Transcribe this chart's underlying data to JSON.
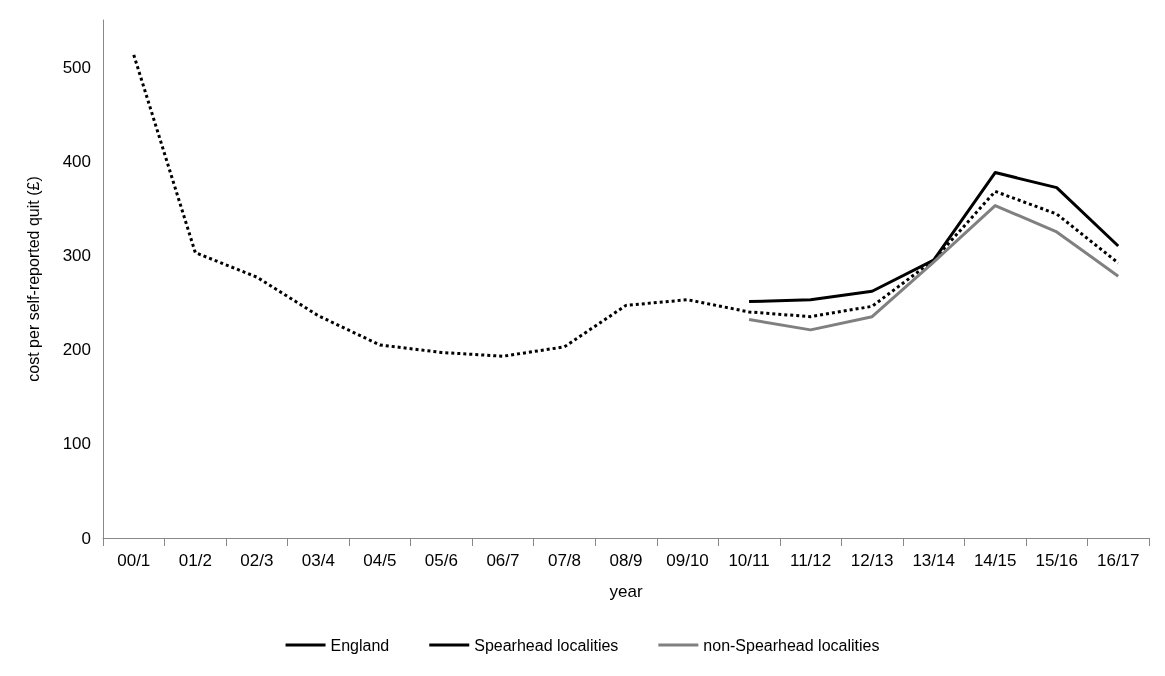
{
  "chart_data": {
    "type": "line",
    "xlabel": "year",
    "ylabel": "cost per self-reported quit (£)",
    "categories": [
      "00/1",
      "01/2",
      "02/3",
      "03/4",
      "04/5",
      "05/6",
      "06/7",
      "07/8",
      "08/9",
      "09/10",
      "10/11",
      "11/12",
      "12/13",
      "13/14",
      "14/15",
      "15/16",
      "16/17"
    ],
    "series": [
      {
        "name": "England",
        "color": "#000000",
        "line_style": "dotted",
        "values": [
          513,
          303,
          277,
          236,
          205,
          197,
          193,
          203,
          247,
          253,
          240,
          235,
          246,
          295,
          368,
          344,
          292
        ]
      },
      {
        "name": "Spearhead localities",
        "color": "#000000",
        "line_style": "solid",
        "values": [
          null,
          null,
          null,
          null,
          null,
          null,
          null,
          null,
          null,
          null,
          251,
          253,
          262,
          295,
          388,
          372,
          310
        ]
      },
      {
        "name": "non-Spearhead localities",
        "color": "#808080",
        "line_style": "solid",
        "values": [
          null,
          null,
          null,
          null,
          null,
          null,
          null,
          null,
          null,
          null,
          232,
          221,
          235,
          293,
          353,
          325,
          278
        ]
      }
    ],
    "ylim": [
      0,
      550
    ],
    "yticks": [
      0,
      100,
      200,
      300,
      400,
      500
    ],
    "grid": false,
    "legend": "bottom",
    "marker": "none"
  }
}
